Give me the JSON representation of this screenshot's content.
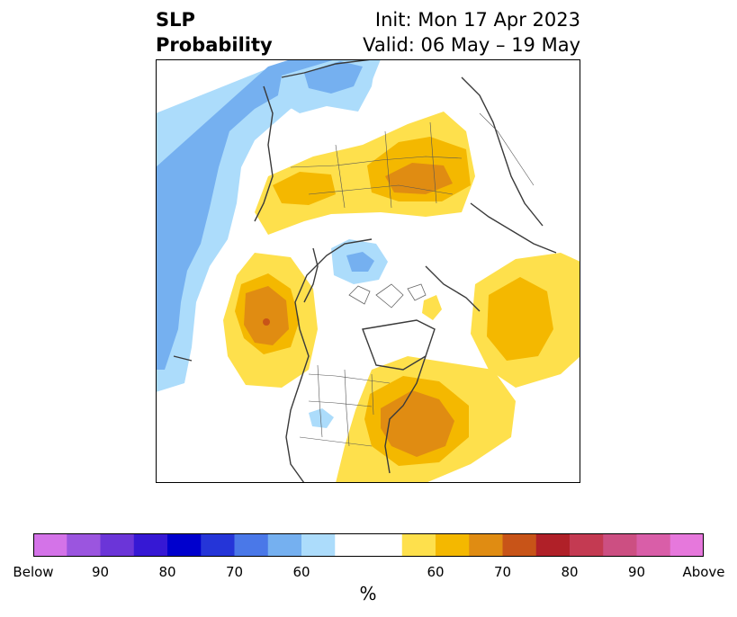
{
  "header": {
    "variable": "SLP",
    "product": "Probability",
    "init": "Init: Mon 17 Apr 2023",
    "valid": "Valid: 06 May – 19 May"
  },
  "colorbar": {
    "unit": "%",
    "colors": [
      "#d473e8",
      "#9b55df",
      "#6b35d8",
      "#3618d4",
      "#0000cd",
      "#2535d8",
      "#4a78e8",
      "#75b0f0",
      "#acdcfb",
      "#ffffff",
      "#ffffff",
      "#fee04c",
      "#f4b800",
      "#e08c12",
      "#c85418",
      "#b02028",
      "#c43a52",
      "#cc4f82",
      "#d95ea8",
      "#e678dc"
    ],
    "tick_labels": [
      "Below",
      "90",
      "80",
      "70",
      "60",
      "60",
      "70",
      "80",
      "90",
      "Above"
    ]
  },
  "map": {
    "projection": "north-polar-stereographic",
    "below_color_light": "#acdcfb",
    "below_color_mid": "#75b0f0",
    "above_color_light": "#fee04c",
    "above_color_mid": "#f4b800",
    "above_color_dark": "#e08c12",
    "above_color_core": "#c85418"
  }
}
